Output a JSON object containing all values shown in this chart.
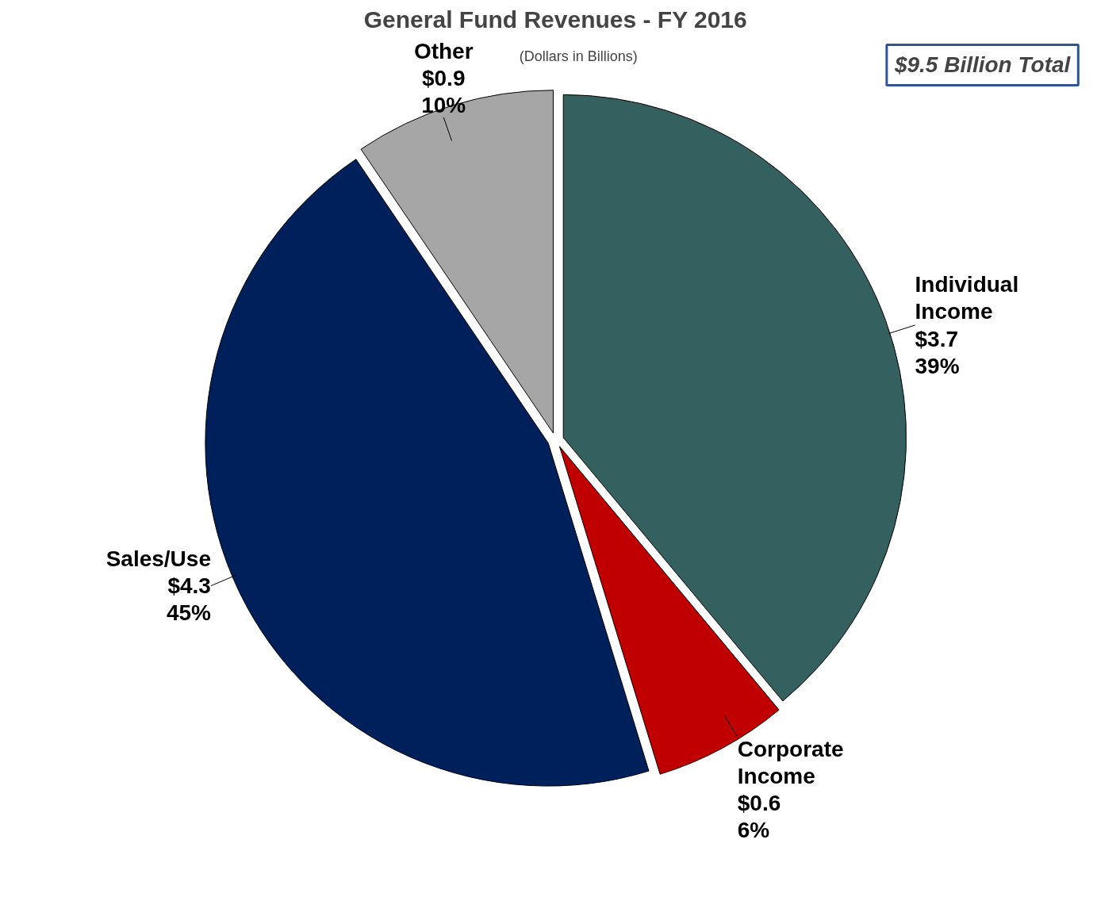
{
  "chart_data": {
    "type": "pie",
    "title": "General Fund Revenues - FY 2016",
    "subtitle": "(Dollars in Billions)",
    "categories": [
      "Individual\nIncome",
      "Corporate\nIncome",
      "Sales/Use",
      "Other"
    ],
    "values": [
      3.7,
      0.6,
      4.3,
      0.9
    ],
    "colors": [
      "#34605f",
      "#c00000",
      "#00205b",
      "#a6a6a6"
    ],
    "value_labels": [
      "$3.7\n39%",
      "$0.6\n6%",
      "$4.3\n45%",
      "$0.9\n10%"
    ],
    "annotations": [
      "$9.5 Billion Total"
    ]
  }
}
